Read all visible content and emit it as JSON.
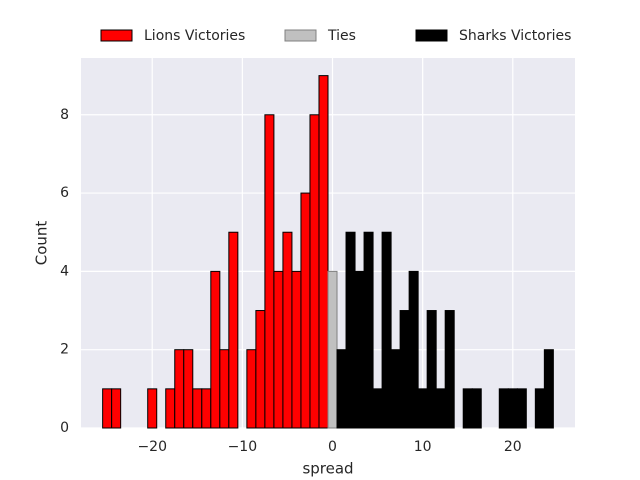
{
  "chart_data": {
    "type": "histogram",
    "xlabel": "spread",
    "ylabel": "Count",
    "xlim": [
      -27.9,
      26.9
    ],
    "ylim": [
      0,
      9.45
    ],
    "xticks": [
      {
        "value": -20,
        "label": "−20"
      },
      {
        "value": -10,
        "label": "−10"
      },
      0,
      10,
      20
    ],
    "yticks": [
      0,
      2,
      4,
      6,
      8
    ],
    "grid": true,
    "legend": "top",
    "series": [
      {
        "name": "Lions Victories",
        "color": "#ff0000",
        "edgecolor": "#000000",
        "bins": [
          -25.5,
          -24.5,
          -23.5,
          -22.5,
          -21.5,
          -20.5,
          -19.5,
          -18.5,
          -17.5,
          -16.5,
          -15.5,
          -14.5,
          -13.5,
          -12.5,
          -11.5,
          -10.5,
          -9.5,
          -8.5,
          -7.5,
          -6.5,
          -5.5,
          -4.5,
          -3.5,
          -2.5,
          -1.5,
          -0.5
        ],
        "values": [
          1,
          1,
          0,
          0,
          0,
          1,
          0,
          1,
          2,
          2,
          1,
          1,
          4,
          2,
          5,
          0,
          2,
          3,
          8,
          4,
          5,
          4,
          6,
          8,
          9
        ]
      },
      {
        "name": "Ties",
        "color": "#c0c0c0",
        "edgecolor": "#808080",
        "bins": [
          -0.5,
          0.5
        ],
        "values": [
          4
        ]
      },
      {
        "name": "Sharks Victories",
        "color": "#000000",
        "edgecolor": "#000000",
        "bins": [
          0.5,
          1.5,
          2.5,
          3.5,
          4.5,
          5.5,
          6.5,
          7.5,
          8.5,
          9.5,
          10.5,
          11.5,
          12.5,
          13.5,
          14.5,
          15.5,
          16.5,
          17.5,
          18.5,
          19.5,
          20.5,
          21.5,
          22.5,
          23.5,
          24.5
        ],
        "values": [
          2,
          5,
          4,
          5,
          1,
          5,
          2,
          3,
          4,
          1,
          3,
          1,
          3,
          0,
          1,
          1,
          0,
          0,
          1,
          1,
          1,
          0,
          1,
          2
        ]
      }
    ]
  }
}
